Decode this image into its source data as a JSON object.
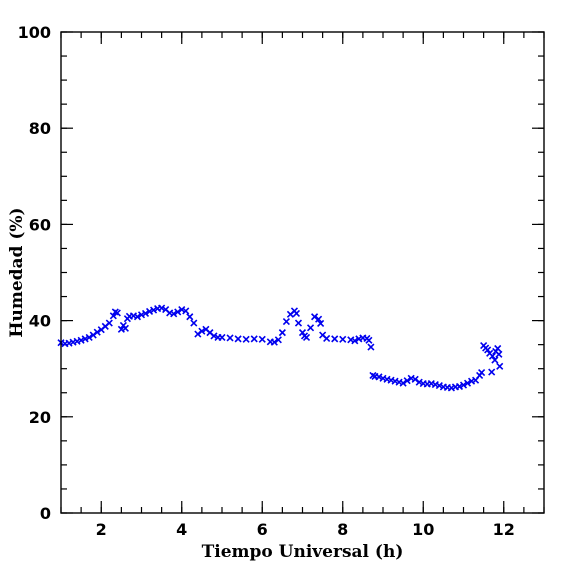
{
  "chart_data": {
    "type": "scatter",
    "xlabel": "Tiempo Universal (h)",
    "ylabel": "Humedad (%)",
    "xlim": [
      1.0,
      13.0
    ],
    "ylim": [
      0,
      100
    ],
    "x_ticks": [
      2,
      4,
      6,
      8,
      10,
      12
    ],
    "x_tick_labels": [
      "2",
      "4",
      "6",
      "8",
      "10",
      "12"
    ],
    "y_ticks": [
      0,
      20,
      40,
      60,
      80,
      100
    ],
    "y_tick_labels": [
      "0",
      "20",
      "40",
      "60",
      "80",
      "100"
    ],
    "x_minor_step": 0.5,
    "y_minor_step": 5,
    "marker": "x",
    "color": "#0000ee",
    "grid": false,
    "points": [
      [
        1.0,
        35.4
      ],
      [
        1.1,
        35.2
      ],
      [
        1.2,
        35.3
      ],
      [
        1.3,
        35.5
      ],
      [
        1.4,
        35.7
      ],
      [
        1.5,
        35.9
      ],
      [
        1.6,
        36.2
      ],
      [
        1.7,
        36.5
      ],
      [
        1.8,
        37.0
      ],
      [
        1.9,
        37.6
      ],
      [
        2.0,
        38.1
      ],
      [
        2.1,
        38.8
      ],
      [
        2.2,
        39.5
      ],
      [
        2.3,
        41.0
      ],
      [
        2.35,
        41.8
      ],
      [
        2.4,
        41.6
      ],
      [
        2.5,
        38.2
      ],
      [
        2.55,
        39.0
      ],
      [
        2.6,
        38.4
      ],
      [
        2.65,
        40.4
      ],
      [
        2.7,
        40.9
      ],
      [
        2.8,
        41.0
      ],
      [
        2.9,
        40.8
      ],
      [
        3.0,
        41.2
      ],
      [
        3.1,
        41.5
      ],
      [
        3.2,
        41.9
      ],
      [
        3.3,
        42.2
      ],
      [
        3.4,
        42.5
      ],
      [
        3.5,
        42.6
      ],
      [
        3.6,
        42.3
      ],
      [
        3.7,
        41.6
      ],
      [
        3.8,
        41.4
      ],
      [
        3.9,
        41.8
      ],
      [
        4.0,
        42.3
      ],
      [
        4.1,
        42.0
      ],
      [
        4.2,
        40.8
      ],
      [
        4.3,
        39.5
      ],
      [
        4.4,
        37.2
      ],
      [
        4.5,
        37.8
      ],
      [
        4.6,
        38.2
      ],
      [
        4.7,
        37.5
      ],
      [
        4.8,
        36.8
      ],
      [
        4.9,
        36.5
      ],
      [
        5.0,
        36.5
      ],
      [
        5.2,
        36.4
      ],
      [
        5.4,
        36.2
      ],
      [
        5.6,
        36.1
      ],
      [
        5.8,
        36.2
      ],
      [
        6.0,
        36.1
      ],
      [
        6.2,
        35.6
      ],
      [
        6.3,
        35.5
      ],
      [
        6.4,
        36.0
      ],
      [
        6.5,
        37.5
      ],
      [
        6.6,
        39.8
      ],
      [
        6.7,
        41.3
      ],
      [
        6.8,
        42.0
      ],
      [
        6.85,
        41.5
      ],
      [
        6.9,
        39.5
      ],
      [
        7.0,
        37.5
      ],
      [
        7.05,
        36.8
      ],
      [
        7.1,
        36.5
      ],
      [
        7.2,
        38.5
      ],
      [
        7.3,
        40.8
      ],
      [
        7.4,
        40.3
      ],
      [
        7.45,
        39.4
      ],
      [
        7.5,
        37.0
      ],
      [
        7.6,
        36.3
      ],
      [
        7.8,
        36.2
      ],
      [
        8.0,
        36.1
      ],
      [
        8.2,
        36.0
      ],
      [
        8.3,
        35.8
      ],
      [
        8.4,
        36.2
      ],
      [
        8.5,
        36.4
      ],
      [
        8.6,
        36.3
      ],
      [
        8.65,
        35.9
      ],
      [
        8.7,
        34.5
      ],
      [
        8.75,
        28.6
      ],
      [
        8.8,
        28.4
      ],
      [
        8.9,
        28.3
      ],
      [
        9.0,
        28.0
      ],
      [
        9.1,
        27.8
      ],
      [
        9.2,
        27.6
      ],
      [
        9.3,
        27.4
      ],
      [
        9.4,
        27.2
      ],
      [
        9.5,
        27.0
      ],
      [
        9.6,
        27.5
      ],
      [
        9.7,
        28.0
      ],
      [
        9.8,
        27.8
      ],
      [
        9.9,
        27.2
      ],
      [
        10.0,
        26.9
      ],
      [
        10.1,
        26.8
      ],
      [
        10.2,
        26.9
      ],
      [
        10.3,
        26.7
      ],
      [
        10.4,
        26.5
      ],
      [
        10.5,
        26.2
      ],
      [
        10.6,
        26.1
      ],
      [
        10.7,
        26.0
      ],
      [
        10.8,
        26.2
      ],
      [
        10.9,
        26.3
      ],
      [
        11.0,
        26.6
      ],
      [
        11.1,
        27.0
      ],
      [
        11.2,
        27.4
      ],
      [
        11.3,
        27.6
      ],
      [
        11.4,
        28.6
      ],
      [
        11.45,
        29.2
      ],
      [
        11.5,
        34.8
      ],
      [
        11.55,
        34.3
      ],
      [
        11.6,
        33.9
      ],
      [
        11.65,
        33.2
      ],
      [
        11.7,
        29.3
      ],
      [
        11.72,
        32.6
      ],
      [
        11.78,
        31.8
      ],
      [
        11.8,
        33.6
      ],
      [
        11.85,
        34.2
      ],
      [
        11.88,
        33.0
      ],
      [
        11.9,
        30.5
      ]
    ]
  }
}
